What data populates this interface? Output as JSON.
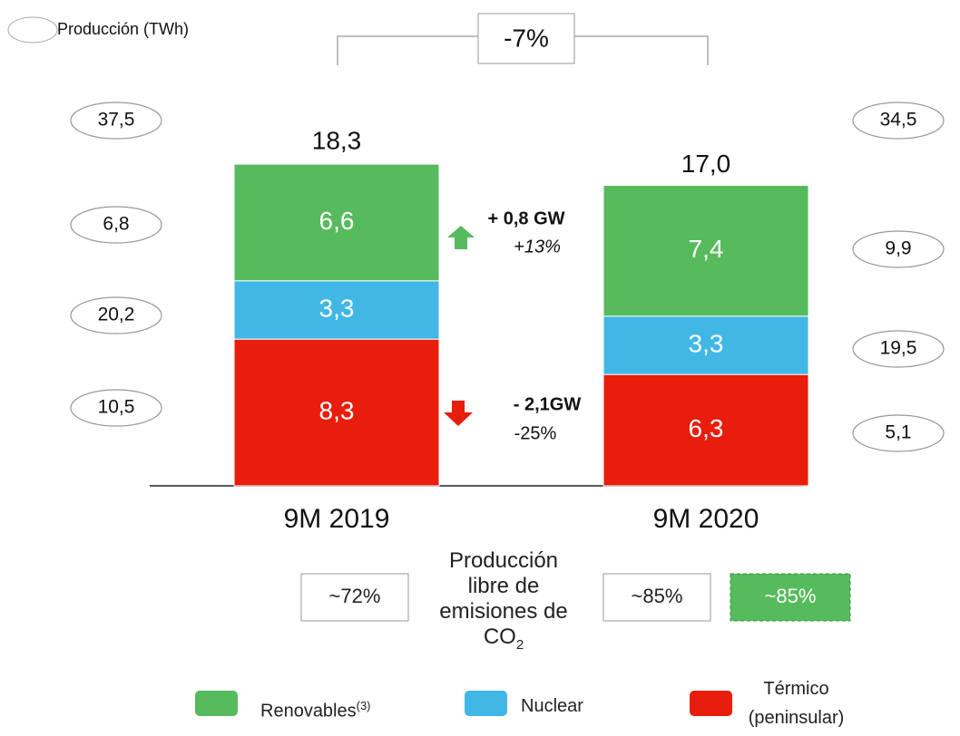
{
  "chart_data": {
    "type": "bar",
    "stacked": true,
    "categories": [
      "9M 2019",
      "9M 2020"
    ],
    "series": [
      {
        "name": "Térmico (peninsular)",
        "color": "#e81d0b",
        "values": [
          8.3,
          6.3
        ],
        "value_labels": [
          "8,3",
          "6,3"
        ]
      },
      {
        "name": "Nuclear",
        "color": "#41b7e6",
        "values": [
          3.3,
          3.3
        ],
        "value_labels": [
          "3,3",
          "3,3"
        ]
      },
      {
        "name": "Renovables",
        "name_note": "(3)",
        "color": "#56bb5c",
        "values": [
          6.6,
          7.4
        ],
        "value_labels": [
          "6,6",
          "7,4"
        ]
      }
    ],
    "totals": [
      18.3,
      17.0
    ],
    "total_labels": [
      "18,3",
      "17,0"
    ],
    "production_legend": "Producción (TWh)",
    "production_left": [
      {
        "value": 37.5,
        "label": "37,5"
      },
      {
        "value": 6.8,
        "label": "6,8"
      },
      {
        "value": 20.2,
        "label": "20,2"
      },
      {
        "value": 10.5,
        "label": "10,5"
      }
    ],
    "production_right": [
      {
        "value": 34.5,
        "label": "34,5"
      },
      {
        "value": 9.9,
        "label": "9,9"
      },
      {
        "value": 19.5,
        "label": "19,5"
      },
      {
        "value": 5.1,
        "label": "5,1"
      }
    ],
    "total_change": "-7%",
    "renewables_change": {
      "capacity": "+ 0,8 GW",
      "percent": "+13%"
    },
    "thermal_change": {
      "capacity": "- 2,1GW",
      "percent": "-25%"
    },
    "emission_free": {
      "label": "Producción libre de emisiones de CO",
      "subscript": "2",
      "values": [
        "~72%",
        "~85%",
        "~85%"
      ]
    }
  }
}
